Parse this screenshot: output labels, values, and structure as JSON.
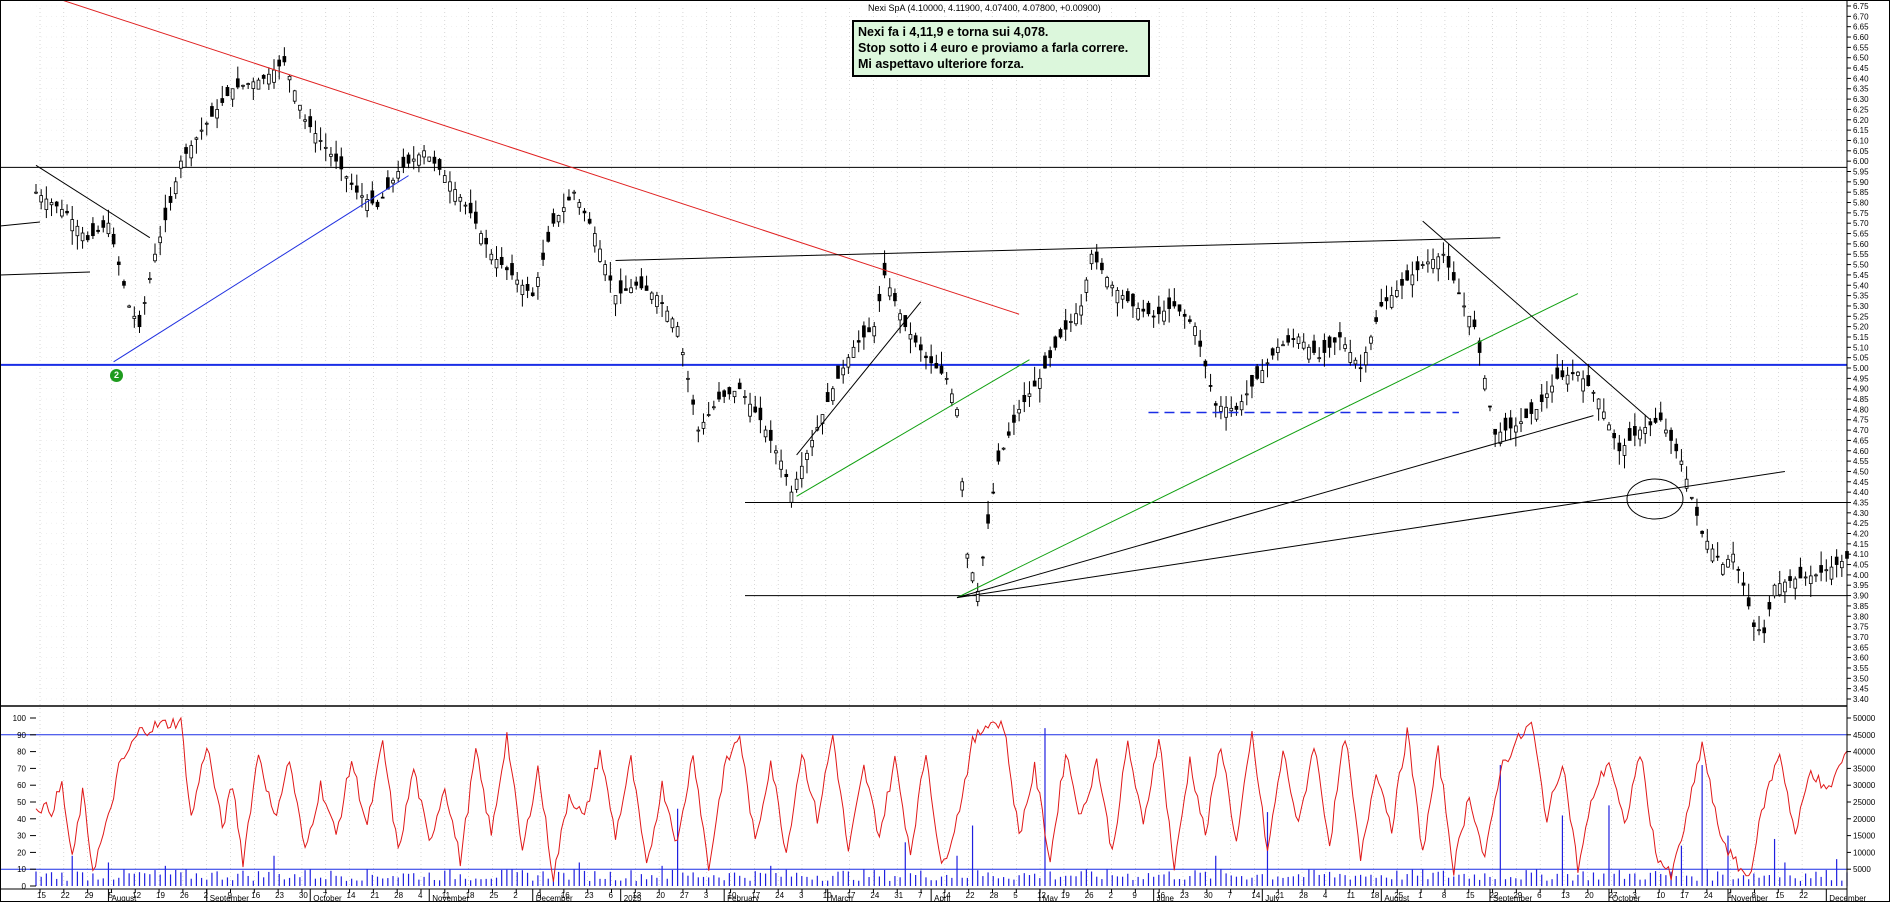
{
  "header": "Nexi SpA (4.10000, 4.11900, 4.07400, 4.07800, +0.00900)",
  "annotation": {
    "lines": [
      "Nexi fa i 4,11,9 e torna sui 4,078.",
      "Stop sotto i 4 euro e proviamo a farla correre.",
      "Mi aspettavo ulteriore forza."
    ]
  },
  "badge": "2",
  "colors": {
    "background": "#ffffff",
    "candles": "#000000",
    "red_trendline": "#e02020",
    "blue_trendline": "#2030e0",
    "green_trendline": "#10a010",
    "horizontal_blue": "#1a2ee6",
    "oscillator": "#e01818",
    "volume": "#2020e0",
    "note_fill": "#dcf7dc",
    "badge": "#1e9b1e"
  },
  "chart_data": [
    {
      "type": "candlestick",
      "title": "Nexi SpA (4.10000, 4.11900, 4.07400, 4.07800, +0.00900)",
      "ylim": [
        3.4,
        6.75
      ],
      "y_ticks": [
        "3.40",
        "3.45",
        "3.50",
        "3.55",
        "3.60",
        "3.65",
        "3.70",
        "3.75",
        "3.80",
        "3.85",
        "3.90",
        "3.95",
        "4.00",
        "4.05",
        "4.10",
        "4.15",
        "4.20",
        "4.25",
        "4.30",
        "4.35",
        "4.40",
        "4.45",
        "4.50",
        "4.55",
        "4.60",
        "4.65",
        "4.70",
        "4.75",
        "4.80",
        "4.85",
        "4.90",
        "4.95",
        "5.00",
        "5.05",
        "5.10",
        "5.15",
        "5.20",
        "5.25",
        "5.30",
        "5.35",
        "5.40",
        "5.45",
        "5.50",
        "5.55",
        "5.60",
        "5.65",
        "5.70",
        "5.75",
        "5.80",
        "5.85",
        "5.90",
        "5.95",
        "6.00",
        "6.05",
        "6.10",
        "6.15",
        "6.20",
        "6.25",
        "6.30",
        "6.35",
        "6.40",
        "6.45",
        "6.50",
        "6.55",
        "6.60",
        "6.65",
        "6.70",
        "6.75"
      ],
      "anchors": [
        [
          0,
          5.85
        ],
        [
          6,
          5.75
        ],
        [
          10,
          5.62
        ],
        [
          14,
          5.7
        ],
        [
          18,
          5.3
        ],
        [
          20,
          5.2
        ],
        [
          23,
          5.55
        ],
        [
          26,
          5.8
        ],
        [
          28,
          6.0
        ],
        [
          32,
          6.15
        ],
        [
          38,
          6.35
        ],
        [
          44,
          6.4
        ],
        [
          48,
          6.48
        ],
        [
          52,
          6.2
        ],
        [
          58,
          6.0
        ],
        [
          62,
          5.85
        ],
        [
          66,
          5.78
        ],
        [
          70,
          5.95
        ],
        [
          75,
          6.05
        ],
        [
          80,
          5.9
        ],
        [
          84,
          5.75
        ],
        [
          88,
          5.55
        ],
        [
          92,
          5.45
        ],
        [
          96,
          5.35
        ],
        [
          100,
          5.7
        ],
        [
          104,
          5.85
        ],
        [
          108,
          5.65
        ],
        [
          112,
          5.35
        ],
        [
          116,
          5.4
        ],
        [
          120,
          5.35
        ],
        [
          124,
          5.2
        ],
        [
          128,
          4.7
        ],
        [
          132,
          4.85
        ],
        [
          136,
          4.9
        ],
        [
          140,
          4.75
        ],
        [
          144,
          4.55
        ],
        [
          146,
          4.4
        ],
        [
          150,
          4.65
        ],
        [
          154,
          4.9
        ],
        [
          158,
          5.1
        ],
        [
          162,
          5.2
        ],
        [
          164,
          5.45
        ],
        [
          168,
          5.2
        ],
        [
          172,
          5.05
        ],
        [
          176,
          4.95
        ],
        [
          178,
          4.8
        ],
        [
          180,
          4.1
        ],
        [
          182,
          3.92
        ],
        [
          184,
          4.25
        ],
        [
          186,
          4.55
        ],
        [
          190,
          4.8
        ],
        [
          194,
          4.95
        ],
        [
          198,
          5.15
        ],
        [
          202,
          5.3
        ],
        [
          204,
          5.55
        ],
        [
          208,
          5.4
        ],
        [
          212,
          5.3
        ],
        [
          216,
          5.25
        ],
        [
          220,
          5.3
        ],
        [
          224,
          5.2
        ],
        [
          228,
          4.82
        ],
        [
          232,
          4.8
        ],
        [
          236,
          4.95
        ],
        [
          240,
          5.1
        ],
        [
          244,
          5.15
        ],
        [
          248,
          5.05
        ],
        [
          252,
          5.15
        ],
        [
          256,
          5.0
        ],
        [
          260,
          5.3
        ],
        [
          264,
          5.4
        ],
        [
          268,
          5.5
        ],
        [
          272,
          5.55
        ],
        [
          276,
          5.3
        ],
        [
          278,
          5.2
        ],
        [
          280,
          4.95
        ],
        [
          282,
          4.68
        ],
        [
          286,
          4.72
        ],
        [
          290,
          4.8
        ],
        [
          294,
          4.95
        ],
        [
          298,
          4.98
        ],
        [
          302,
          4.85
        ],
        [
          306,
          4.6
        ],
        [
          310,
          4.7
        ],
        [
          314,
          4.75
        ],
        [
          318,
          4.55
        ],
        [
          322,
          4.2
        ],
        [
          326,
          4.05
        ],
        [
          328,
          4.1
        ],
        [
          330,
          3.95
        ],
        [
          332,
          3.75
        ],
        [
          334,
          3.72
        ],
        [
          336,
          3.95
        ],
        [
          340,
          3.98
        ],
        [
          344,
          4.0
        ],
        [
          348,
          4.05
        ],
        [
          350,
          4.08
        ]
      ],
      "date_axis": {
        "day_ticks": [
          "15",
          "22",
          "29",
          "5",
          "12",
          "19",
          "26",
          "2",
          "9",
          "16",
          "23",
          "30",
          "7",
          "14",
          "21",
          "28",
          "4",
          "11",
          "18",
          "25",
          "2",
          "9",
          "16",
          "23",
          "6",
          "13",
          "20",
          "27",
          "3",
          "10",
          "17",
          "24",
          "3",
          "10",
          "17",
          "24",
          "31",
          "7",
          "14",
          "22",
          "28",
          "5",
          "12",
          "19",
          "26",
          "2",
          "9",
          "16",
          "23",
          "30",
          "7",
          "14",
          "21",
          "28",
          "4",
          "11",
          "18",
          "25",
          "1",
          "8",
          "15",
          "22",
          "29",
          "6",
          "13",
          "20",
          "27",
          "3",
          "10",
          "17",
          "24",
          "1",
          "8",
          "15",
          "22"
        ],
        "months": [
          {
            "label": "August",
            "day": 14
          },
          {
            "label": "September",
            "day": 33
          },
          {
            "label": "October",
            "day": 53
          },
          {
            "label": "November",
            "day": 76
          },
          {
            "label": "December",
            "day": 96
          },
          {
            "label": "2025",
            "day": 113
          },
          {
            "label": "February",
            "day": 133
          },
          {
            "label": "March",
            "day": 153
          },
          {
            "label": "April",
            "day": 173
          },
          {
            "label": "May",
            "day": 194
          },
          {
            "label": "June",
            "day": 216
          },
          {
            "label": "July",
            "day": 237
          },
          {
            "label": "August",
            "day": 260
          },
          {
            "label": "September",
            "day": 281
          },
          {
            "label": "October",
            "day": 304
          },
          {
            "label": "November",
            "day": 327
          },
          {
            "label": "December",
            "day": 346
          }
        ]
      },
      "horizontal_levels": [
        5.97,
        5.015,
        4.35,
        3.9
      ],
      "trendlines": [
        {
          "color": "red",
          "from": [
            0,
            6.82
          ],
          "to": [
            190,
            5.26
          ]
        },
        {
          "color": "blue",
          "from": [
            15,
            5.03
          ],
          "to": [
            72,
            5.93
          ]
        },
        {
          "color": "green",
          "from": [
            147,
            4.38
          ],
          "to": [
            192,
            5.04
          ]
        },
        {
          "color": "green",
          "from": [
            178,
            3.89
          ],
          "to": [
            298,
            5.36
          ]
        },
        {
          "color": "black",
          "from": [
            147,
            4.58
          ],
          "to": [
            171,
            5.32
          ]
        },
        {
          "color": "black",
          "from": [
            112,
            5.52
          ],
          "to": [
            283,
            5.63
          ]
        },
        {
          "color": "black",
          "from": [
            178,
            3.89
          ],
          "to": [
            301,
            4.77
          ]
        },
        {
          "color": "black",
          "from": [
            178,
            3.89
          ],
          "to": [
            338,
            4.5
          ]
        },
        {
          "color": "black",
          "from": [
            268,
            5.71
          ],
          "to": [
            312,
            4.75
          ]
        },
        {
          "color": "black",
          "from": [
            0,
            5.98
          ],
          "to": [
            22,
            5.63
          ]
        },
        {
          "color": "dashed-blue",
          "from": [
            215,
            4.785
          ],
          "to": [
            275,
            4.785
          ]
        }
      ]
    },
    {
      "type": "line",
      "ylim": [
        0,
        100
      ],
      "y_ticks": [
        "0",
        "10",
        "20",
        "30",
        "40",
        "50",
        "60",
        "70",
        "80",
        "90",
        "100"
      ],
      "levels": [
        10,
        90
      ],
      "anchors": [
        [
          0,
          48
        ],
        [
          3,
          45
        ],
        [
          5,
          60
        ],
        [
          7,
          15
        ],
        [
          9,
          55
        ],
        [
          11,
          10
        ],
        [
          14,
          40
        ],
        [
          16,
          70
        ],
        [
          20,
          92
        ],
        [
          24,
          96
        ],
        [
          28,
          98
        ],
        [
          30,
          40
        ],
        [
          33,
          85
        ],
        [
          36,
          35
        ],
        [
          38,
          60
        ],
        [
          40,
          15
        ],
        [
          43,
          80
        ],
        [
          46,
          40
        ],
        [
          49,
          75
        ],
        [
          52,
          20
        ],
        [
          55,
          60
        ],
        [
          58,
          30
        ],
        [
          61,
          75
        ],
        [
          64,
          35
        ],
        [
          67,
          85
        ],
        [
          70,
          20
        ],
        [
          73,
          70
        ],
        [
          76,
          25
        ],
        [
          79,
          60
        ],
        [
          82,
          15
        ],
        [
          85,
          80
        ],
        [
          88,
          30
        ],
        [
          91,
          90
        ],
        [
          94,
          20
        ],
        [
          97,
          70
        ],
        [
          100,
          5
        ],
        [
          103,
          55
        ],
        [
          106,
          40
        ],
        [
          109,
          80
        ],
        [
          112,
          30
        ],
        [
          115,
          75
        ],
        [
          118,
          10
        ],
        [
          121,
          60
        ],
        [
          124,
          25
        ],
        [
          127,
          80
        ],
        [
          130,
          10
        ],
        [
          133,
          70
        ],
        [
          136,
          90
        ],
        [
          139,
          25
        ],
        [
          142,
          75
        ],
        [
          145,
          20
        ],
        [
          148,
          80
        ],
        [
          151,
          40
        ],
        [
          154,
          90
        ],
        [
          157,
          20
        ],
        [
          160,
          70
        ],
        [
          163,
          30
        ],
        [
          166,
          75
        ],
        [
          169,
          20
        ],
        [
          172,
          80
        ],
        [
          175,
          10
        ],
        [
          178,
          40
        ],
        [
          181,
          85
        ],
        [
          184,
          98
        ],
        [
          187,
          96
        ],
        [
          190,
          30
        ],
        [
          193,
          70
        ],
        [
          196,
          15
        ],
        [
          199,
          80
        ],
        [
          202,
          40
        ],
        [
          205,
          75
        ],
        [
          208,
          20
        ],
        [
          211,
          85
        ],
        [
          214,
          35
        ],
        [
          217,
          90
        ],
        [
          220,
          10
        ],
        [
          223,
          75
        ],
        [
          226,
          30
        ],
        [
          229,
          85
        ],
        [
          232,
          25
        ],
        [
          235,
          90
        ],
        [
          238,
          20
        ],
        [
          241,
          80
        ],
        [
          244,
          35
        ],
        [
          247,
          85
        ],
        [
          250,
          25
        ],
        [
          253,
          90
        ],
        [
          256,
          15
        ],
        [
          259,
          70
        ],
        [
          262,
          35
        ],
        [
          265,
          92
        ],
        [
          268,
          20
        ],
        [
          271,
          80
        ],
        [
          274,
          10
        ],
        [
          277,
          55
        ],
        [
          280,
          15
        ],
        [
          283,
          70
        ],
        [
          286,
          85
        ],
        [
          289,
          97
        ],
        [
          292,
          40
        ],
        [
          295,
          75
        ],
        [
          298,
          10
        ],
        [
          301,
          55
        ],
        [
          304,
          75
        ],
        [
          307,
          35
        ],
        [
          310,
          80
        ],
        [
          313,
          20
        ],
        [
          316,
          5
        ],
        [
          319,
          40
        ],
        [
          322,
          85
        ],
        [
          325,
          35
        ],
        [
          328,
          15
        ],
        [
          331,
          5
        ],
        [
          334,
          50
        ],
        [
          337,
          80
        ],
        [
          340,
          30
        ],
        [
          343,
          70
        ],
        [
          346,
          55
        ],
        [
          350,
          80
        ]
      ]
    },
    {
      "type": "bar",
      "name": "volume",
      "ylim": [
        0,
        50000
      ],
      "y_ticks": [
        "5000",
        "10000",
        "15000",
        "20000",
        "25000",
        "30000",
        "35000",
        "40000",
        "45000",
        "50000"
      ],
      "spikes": [
        [
          7,
          9000
        ],
        [
          14,
          7000
        ],
        [
          25,
          6000
        ],
        [
          46,
          9000
        ],
        [
          53,
          5000
        ],
        [
          105,
          7000
        ],
        [
          121,
          6000
        ],
        [
          124,
          23000
        ],
        [
          142,
          6000
        ],
        [
          168,
          13000
        ],
        [
          178,
          9000
        ],
        [
          181,
          18000
        ],
        [
          195,
          47000
        ],
        [
          228,
          9000
        ],
        [
          238,
          22000
        ],
        [
          283,
          36000
        ],
        [
          295,
          21000
        ],
        [
          304,
          24000
        ],
        [
          318,
          12000
        ],
        [
          322,
          36000
        ],
        [
          327,
          15000
        ],
        [
          336,
          14000
        ],
        [
          338,
          7000
        ],
        [
          348,
          8000
        ]
      ]
    }
  ]
}
